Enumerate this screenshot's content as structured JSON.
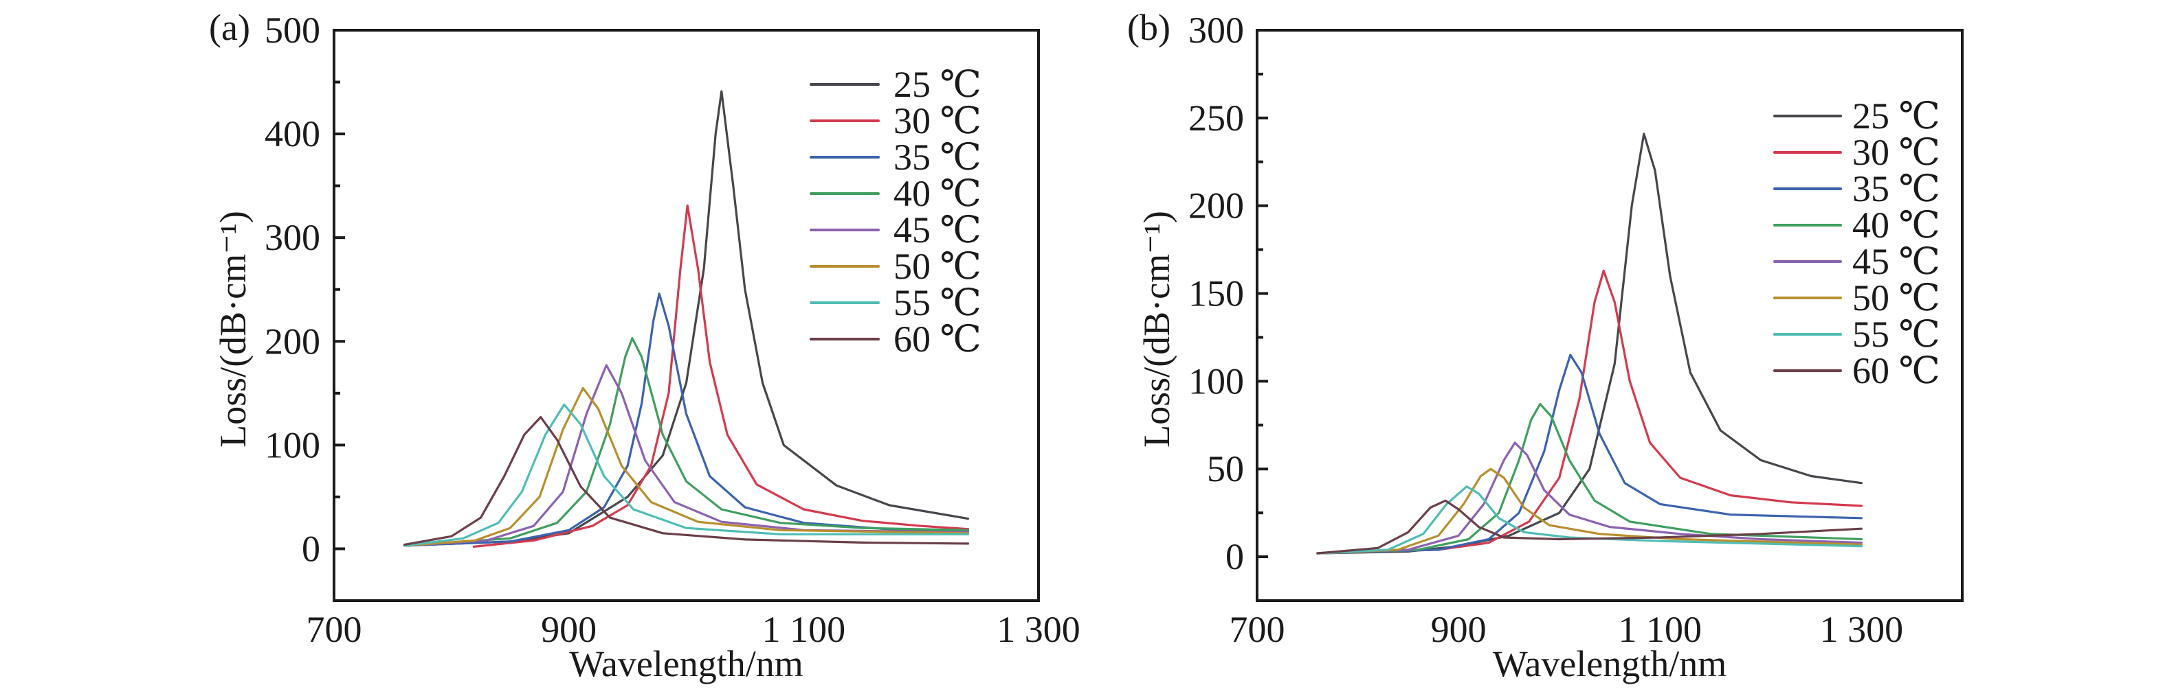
{
  "chart_data": [
    {
      "panel_label": "(a)",
      "type": "line",
      "xlabel": "Wavelength/nm",
      "ylabel": "Loss/(dB·cm⁻¹)",
      "xlim": [
        700,
        1300
      ],
      "ylim": [
        -50,
        500
      ],
      "x_tick_labels": [
        {
          "value": 700,
          "label": "700"
        },
        {
          "value": 900,
          "label": "900"
        },
        {
          "value": 1100,
          "label": "1 100"
        },
        {
          "value": 1300,
          "label": "1 300"
        }
      ],
      "y_tick_labels": [
        {
          "value": 0,
          "label": "0"
        },
        {
          "value": 100,
          "label": "100"
        },
        {
          "value": 200,
          "label": "200"
        },
        {
          "value": 300,
          "label": "300"
        },
        {
          "value": 400,
          "label": "400"
        },
        {
          "value": 500,
          "label": "500"
        }
      ],
      "grid": false,
      "legend_position": "top-right",
      "series": [
        {
          "name": "25 ℃",
          "color": "#45474b",
          "points": [
            [
              760,
              3
            ],
            [
              850,
              7
            ],
            [
              900,
              15
            ],
            [
              950,
              50
            ],
            [
              980,
              90
            ],
            [
              1000,
              160
            ],
            [
              1015,
              270
            ],
            [
              1025,
              400
            ],
            [
              1030,
              441
            ],
            [
              1040,
              350
            ],
            [
              1050,
              250
            ],
            [
              1065,
              160
            ],
            [
              1083,
              100
            ],
            [
              1128,
              61
            ],
            [
              1173,
              42
            ],
            [
              1240,
              29
            ]
          ]
        },
        {
          "name": "30 ℃",
          "color": "#d43a4e",
          "points": [
            [
              819,
              2
            ],
            [
              870,
              8
            ],
            [
              920,
              22
            ],
            [
              950,
              42
            ],
            [
              970,
              80
            ],
            [
              985,
              150
            ],
            [
              995,
              270
            ],
            [
              1001,
              331
            ],
            [
              1010,
              270
            ],
            [
              1020,
              180
            ],
            [
              1035,
              110
            ],
            [
              1060,
              62
            ],
            [
              1100,
              38
            ],
            [
              1150,
              27
            ],
            [
              1200,
              22
            ],
            [
              1240,
              19
            ]
          ]
        },
        {
          "name": "35 ℃",
          "color": "#3b63ae",
          "points": [
            [
              760,
              3
            ],
            [
              850,
              7
            ],
            [
              900,
              18
            ],
            [
              930,
              40
            ],
            [
              950,
              80
            ],
            [
              962,
              140
            ],
            [
              972,
              220
            ],
            [
              977,
              246
            ],
            [
              985,
              215
            ],
            [
              1000,
              130
            ],
            [
              1020,
              70
            ],
            [
              1050,
              40
            ],
            [
              1100,
              25
            ],
            [
              1170,
              19
            ],
            [
              1240,
              17
            ]
          ]
        },
        {
          "name": "40 ℃",
          "color": "#3f9f5f",
          "points": [
            [
              760,
              3
            ],
            [
              850,
              10
            ],
            [
              890,
              25
            ],
            [
              915,
              55
            ],
            [
              935,
              120
            ],
            [
              948,
              185
            ],
            [
              954,
              203
            ],
            [
              962,
              185
            ],
            [
              980,
              110
            ],
            [
              1000,
              65
            ],
            [
              1030,
              38
            ],
            [
              1080,
              25
            ],
            [
              1150,
              20
            ],
            [
              1240,
              18
            ]
          ]
        },
        {
          "name": "45 ℃",
          "color": "#8b62b0",
          "points": [
            [
              760,
              3
            ],
            [
              830,
              8
            ],
            [
              870,
              22
            ],
            [
              895,
              55
            ],
            [
              915,
              130
            ],
            [
              932,
              177
            ],
            [
              945,
              150
            ],
            [
              965,
              85
            ],
            [
              990,
              45
            ],
            [
              1030,
              26
            ],
            [
              1100,
              18
            ],
            [
              1240,
              16
            ]
          ]
        },
        {
          "name": "50 ℃",
          "color": "#b88f2e",
          "points": [
            [
              760,
              3
            ],
            [
              820,
              8
            ],
            [
              850,
              20
            ],
            [
              875,
              50
            ],
            [
              895,
              115
            ],
            [
              912,
              155
            ],
            [
              925,
              135
            ],
            [
              945,
              80
            ],
            [
              970,
              45
            ],
            [
              1010,
              26
            ],
            [
              1080,
              18
            ],
            [
              1240,
              15
            ]
          ]
        },
        {
          "name": "55 ℃",
          "color": "#4fbdb4",
          "points": [
            [
              760,
              3
            ],
            [
              810,
              10
            ],
            [
              840,
              25
            ],
            [
              860,
              55
            ],
            [
              880,
              110
            ],
            [
              896,
              139
            ],
            [
              910,
              120
            ],
            [
              930,
              70
            ],
            [
              955,
              38
            ],
            [
              1000,
              20
            ],
            [
              1080,
              14
            ],
            [
              1240,
              14
            ]
          ]
        },
        {
          "name": "60 ℃",
          "color": "#6b3f48",
          "points": [
            [
              760,
              4
            ],
            [
              800,
              12
            ],
            [
              825,
              30
            ],
            [
              845,
              70
            ],
            [
              862,
              110
            ],
            [
              876,
              127
            ],
            [
              890,
              105
            ],
            [
              910,
              60
            ],
            [
              935,
              30
            ],
            [
              980,
              15
            ],
            [
              1050,
              9
            ],
            [
              1150,
              6
            ],
            [
              1240,
              5
            ]
          ]
        }
      ]
    },
    {
      "panel_label": "(b)",
      "type": "line",
      "xlabel": "Wavelength/nm",
      "ylabel": "Loss/(dB·cm⁻¹)",
      "xlim": [
        700,
        1400
      ],
      "ylim": [
        -25,
        300
      ],
      "x_tick_labels": [
        {
          "value": 700,
          "label": "700"
        },
        {
          "value": 900,
          "label": "900"
        },
        {
          "value": 1100,
          "label": "1 100"
        },
        {
          "value": 1300,
          "label": "1 300"
        }
      ],
      "y_tick_labels": [
        {
          "value": 0,
          "label": "0"
        },
        {
          "value": 50,
          "label": "50"
        },
        {
          "value": 100,
          "label": "100"
        },
        {
          "value": 150,
          "label": "150"
        },
        {
          "value": 200,
          "label": "200"
        },
        {
          "value": 250,
          "label": "250"
        },
        {
          "value": 300,
          "label": "300"
        }
      ],
      "grid": false,
      "legend_position": "top-right",
      "series": [
        {
          "name": "25 ℃",
          "color": "#45474b",
          "points": [
            [
              760,
              2
            ],
            [
              850,
              3
            ],
            [
              900,
              6
            ],
            [
              950,
              12
            ],
            [
              1000,
              25
            ],
            [
              1030,
              50
            ],
            [
              1055,
              110
            ],
            [
              1072,
              200
            ],
            [
              1084,
              241
            ],
            [
              1095,
              220
            ],
            [
              1110,
              160
            ],
            [
              1130,
              105
            ],
            [
              1160,
              72
            ],
            [
              1200,
              55
            ],
            [
              1250,
              46
            ],
            [
              1300,
              42
            ]
          ]
        },
        {
          "name": "30 ℃",
          "color": "#d43a4e",
          "points": [
            [
              760,
              2
            ],
            [
              880,
              4
            ],
            [
              930,
              8
            ],
            [
              970,
              20
            ],
            [
              1000,
              45
            ],
            [
              1020,
              90
            ],
            [
              1035,
              145
            ],
            [
              1044,
              163
            ],
            [
              1055,
              145
            ],
            [
              1070,
              100
            ],
            [
              1090,
              65
            ],
            [
              1120,
              45
            ],
            [
              1170,
              35
            ],
            [
              1230,
              31
            ],
            [
              1300,
              29
            ]
          ]
        },
        {
          "name": "35 ℃",
          "color": "#3b63ae",
          "points": [
            [
              760,
              2
            ],
            [
              880,
              4
            ],
            [
              930,
              10
            ],
            [
              960,
              25
            ],
            [
              985,
              60
            ],
            [
              1000,
              95
            ],
            [
              1011,
              115
            ],
            [
              1022,
              105
            ],
            [
              1040,
              70
            ],
            [
              1065,
              42
            ],
            [
              1100,
              30
            ],
            [
              1170,
              24
            ],
            [
              1300,
              22
            ]
          ]
        },
        {
          "name": "40 ℃",
          "color": "#3f9f5f",
          "points": [
            [
              760,
              2
            ],
            [
              860,
              4
            ],
            [
              910,
              10
            ],
            [
              940,
              25
            ],
            [
              960,
              55
            ],
            [
              972,
              78
            ],
            [
              981,
              87
            ],
            [
              992,
              80
            ],
            [
              1010,
              55
            ],
            [
              1035,
              32
            ],
            [
              1070,
              20
            ],
            [
              1150,
              13
            ],
            [
              1300,
              10
            ]
          ]
        },
        {
          "name": "45 ℃",
          "color": "#8b62b0",
          "points": [
            [
              760,
              2
            ],
            [
              850,
              4
            ],
            [
              900,
              12
            ],
            [
              925,
              30
            ],
            [
              945,
              55
            ],
            [
              956,
              65
            ],
            [
              968,
              58
            ],
            [
              985,
              38
            ],
            [
              1010,
              24
            ],
            [
              1050,
              17
            ],
            [
              1120,
              13
            ],
            [
              1200,
              10
            ],
            [
              1300,
              8
            ]
          ]
        },
        {
          "name": "50 ℃",
          "color": "#b88f2e",
          "points": [
            [
              760,
              2
            ],
            [
              840,
              4
            ],
            [
              880,
              12
            ],
            [
              905,
              30
            ],
            [
              922,
              46
            ],
            [
              932,
              50
            ],
            [
              945,
              45
            ],
            [
              965,
              28
            ],
            [
              990,
              18
            ],
            [
              1040,
              13
            ],
            [
              1120,
              10
            ],
            [
              1300,
              7
            ]
          ]
        },
        {
          "name": "55 ℃",
          "color": "#4fbdb4",
          "points": [
            [
              760,
              2
            ],
            [
              830,
              4
            ],
            [
              865,
              13
            ],
            [
              888,
              30
            ],
            [
              908,
              40
            ],
            [
              920,
              36
            ],
            [
              940,
              22
            ],
            [
              965,
              14
            ],
            [
              1010,
              11
            ],
            [
              1100,
              9
            ],
            [
              1300,
              6
            ]
          ]
        },
        {
          "name": "60 ℃",
          "color": "#6b3f48",
          "points": [
            [
              760,
              2
            ],
            [
              820,
              5
            ],
            [
              850,
              14
            ],
            [
              872,
              28
            ],
            [
              887,
              32
            ],
            [
              900,
              27
            ],
            [
              920,
              17
            ],
            [
              945,
              11
            ],
            [
              1000,
              10
            ],
            [
              1100,
              11
            ],
            [
              1200,
              13
            ],
            [
              1300,
              16
            ]
          ]
        }
      ]
    }
  ]
}
